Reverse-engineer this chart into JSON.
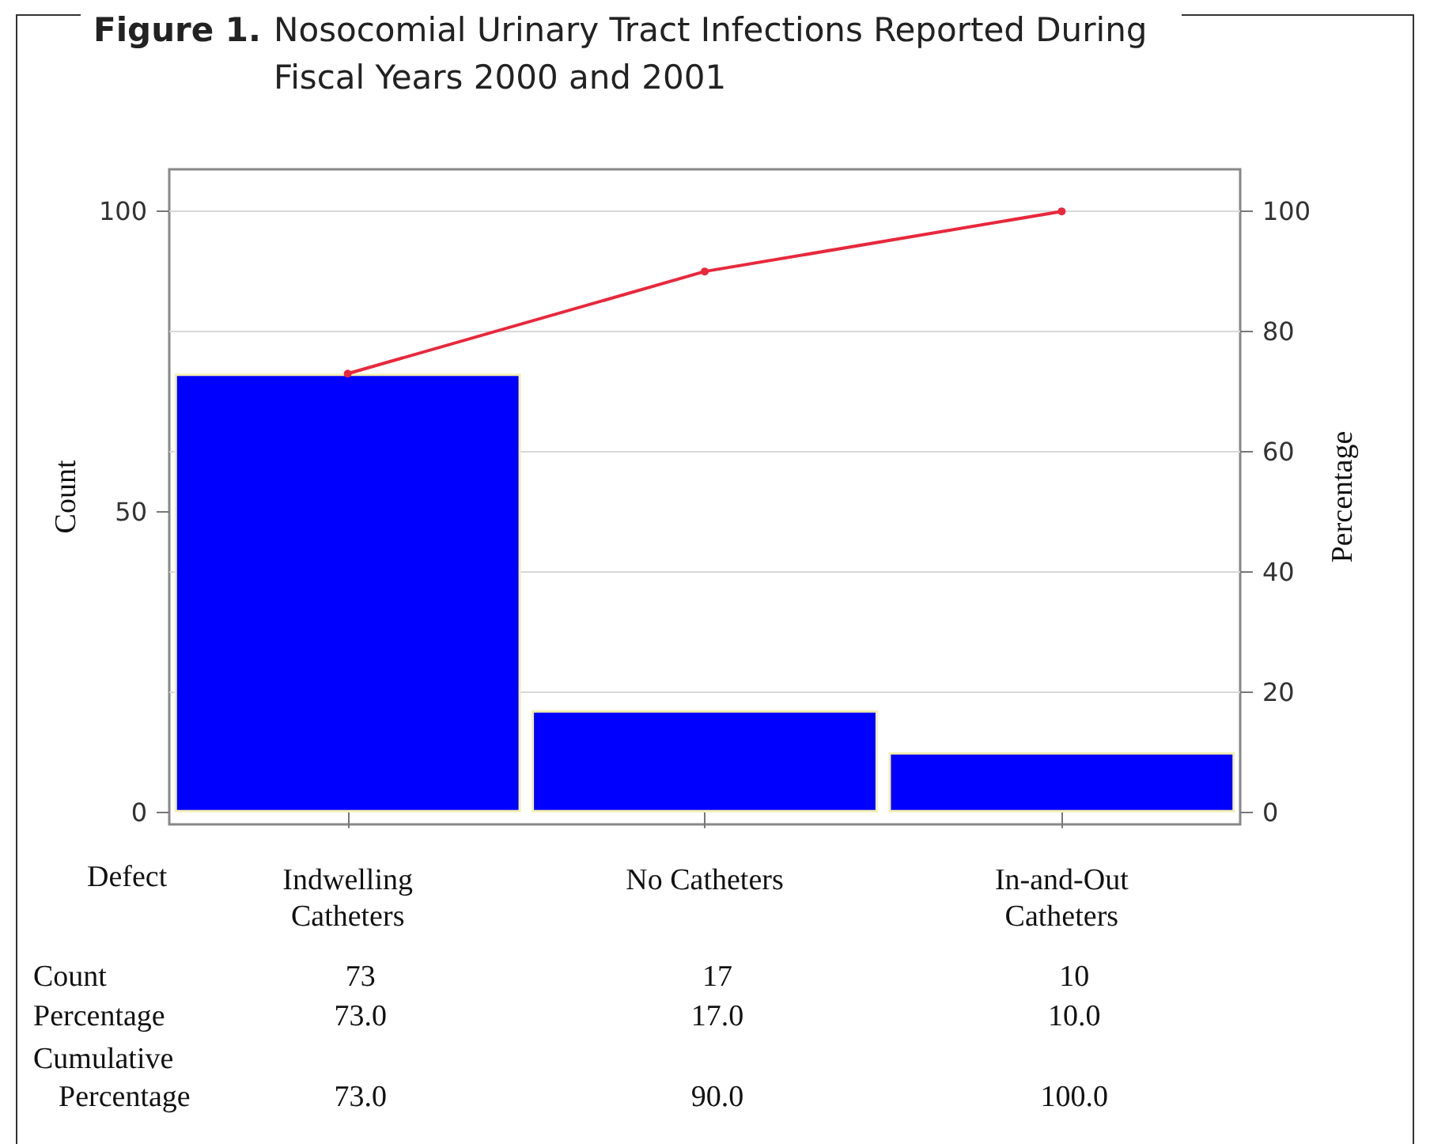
{
  "chart_data": {
    "type": "bar",
    "title": "Figure 1. Nosocomial Urinary Tract Infections Reported During Fiscal Years 2000 and 2001",
    "ylabel": "Count",
    "y2label": "Percentage",
    "categories": [
      "Indwelling\nCatheters",
      "No Catheters",
      "In-and-Out\nCatheters"
    ],
    "series": [
      {
        "color": "#0000ff",
        "values": [
          73,
          17,
          10
        ],
        "value_labels": [
          "73",
          "17",
          "10"
        ]
      },
      {
        "type": "line",
        "axis": "y2",
        "color": "#e8283c",
        "values": [
          73,
          90,
          100
        ],
        "value_labels": [
          "73.0",
          "90.0",
          "100.0"
        ]
      }
    ],
    "annotations": [
      "Defect",
      "Count",
      "Percentage",
      "Cumulative Percentage",
      "73.0",
      "17.0",
      "10.0"
    ],
    "ylim": [
      -2,
      107
    ],
    "yticks": [
      0,
      50,
      100
    ],
    "y2lim": [
      -2,
      107
    ],
    "y2ticks": [
      0,
      20,
      40,
      60,
      80,
      100
    ],
    "grid": "y2",
    "marker": "circle",
    "line_style": "solid"
  }
}
